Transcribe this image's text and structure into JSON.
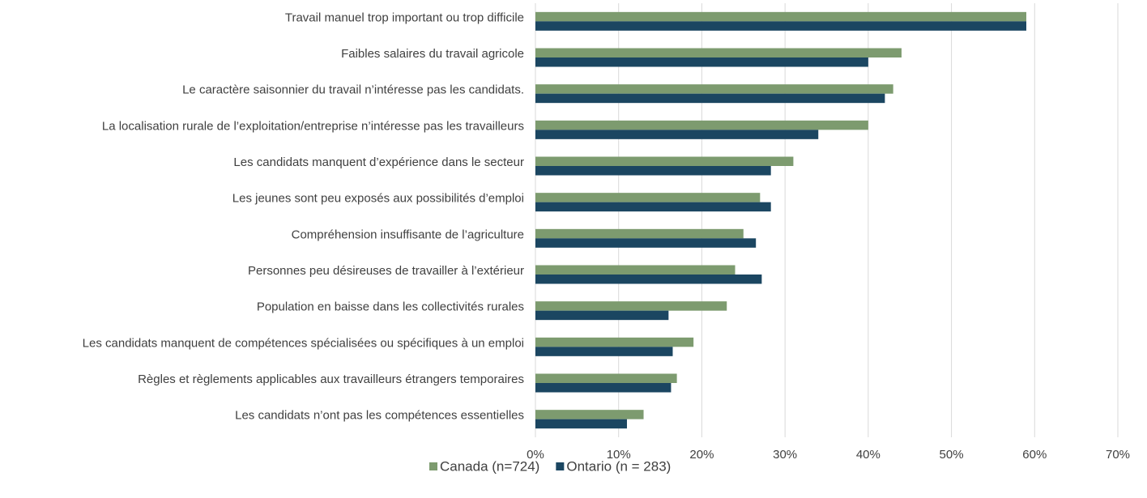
{
  "chart_data": {
    "type": "barh",
    "categories": [
      "Travail manuel trop important ou trop difficile",
      "Faibles salaires du travail agricole",
      "Le caractère saisonnier du travail n’intéresse pas les candidats.",
      "La localisation rurale de l’exploitation/entreprise n’intéresse pas les travailleurs",
      "Les candidats manquent d’expérience dans le secteur",
      "Les jeunes sont peu exposés aux possibilités d’emploi",
      "Compréhension insuffisante de l’agriculture",
      "Personnes peu désireuses de travailler à l’extérieur",
      "Population en baisse dans les collectivités rurales",
      "Les candidats manquent de compétences spécialisées ou spécifiques à un emploi",
      "Règles et règlements applicables aux travailleurs étrangers temporaires",
      "Les candidats n’ont pas les compétences essentielles"
    ],
    "series": [
      {
        "name": "Canada (n=724)",
        "color": "#7d9b6f",
        "values": [
          59,
          44,
          43,
          40,
          31,
          27,
          25,
          24,
          23,
          19,
          17,
          13
        ]
      },
      {
        "name": "Ontario (n = 283)",
        "color": "#1b4661",
        "values": [
          59,
          40,
          42,
          34,
          28.3,
          28.3,
          26.5,
          27.2,
          16,
          16.5,
          16.3,
          11
        ]
      }
    ],
    "xlim": [
      0,
      70
    ],
    "xticks": [
      {
        "value": 0,
        "label": "0%"
      },
      {
        "value": 10,
        "label": "10%"
      },
      {
        "value": 20,
        "label": "20%"
      },
      {
        "value": 30,
        "label": "30%"
      },
      {
        "value": 40,
        "label": "40%"
      },
      {
        "value": 50,
        "label": "50%"
      },
      {
        "value": 60,
        "label": "60%"
      },
      {
        "value": 70,
        "label": "70%"
      }
    ],
    "grid": true,
    "legend": "bottom"
  }
}
